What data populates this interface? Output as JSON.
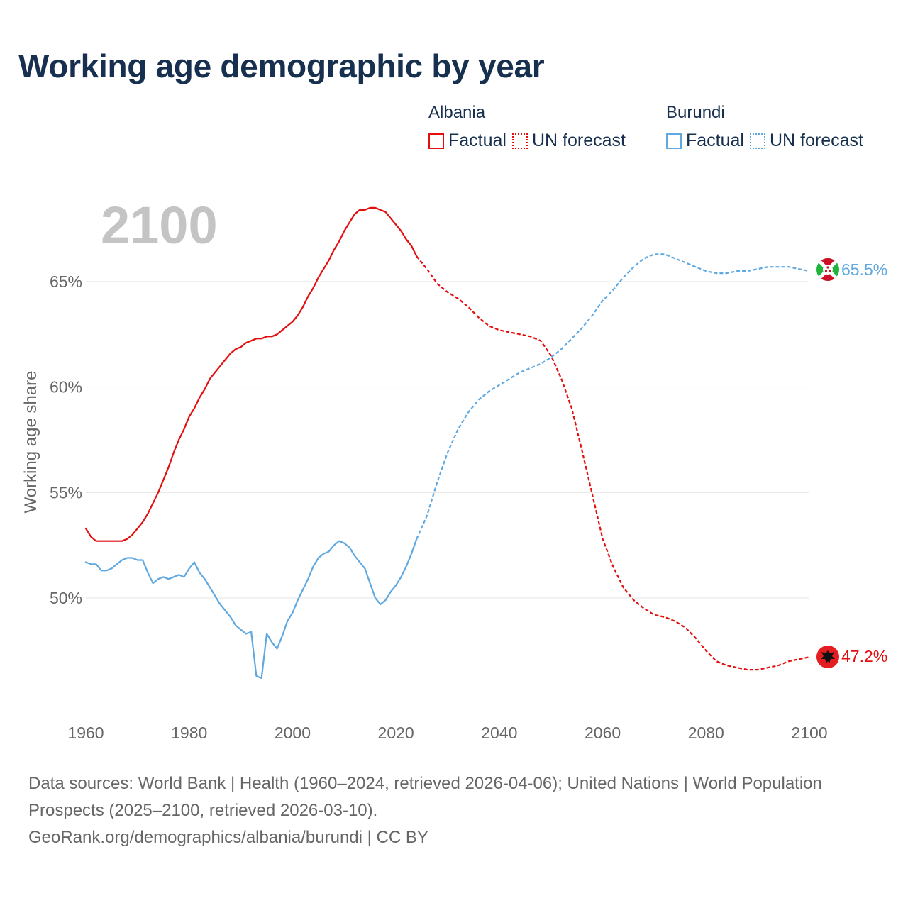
{
  "title": "Working age demographic by year",
  "legend": {
    "groups": [
      {
        "name": "Albania",
        "factual_label": "Factual",
        "forecast_label": "UN forecast",
        "color": "#e30e0e"
      },
      {
        "name": "Burundi",
        "factual_label": "Factual",
        "forecast_label": "UN forecast",
        "color": "#5fa8e0"
      }
    ]
  },
  "year_label": "2100",
  "end_labels": {
    "albania": "47.2%",
    "burundi": "65.5%"
  },
  "flag_icons": {
    "albania": "albania-flag-icon",
    "burundi": "burundi-flag-icon"
  },
  "footer": {
    "sources": "Data sources: World Bank | Health (1960–2024, retrieved 2026-04-06); United Nations | World Population Prospects (2025–2100, retrieved 2026-03-10).",
    "attribution": "GeoRank.org/demographics/albania/burundi | CC BY"
  },
  "chart_data": {
    "type": "line",
    "title": "Working age demographic by year",
    "xlabel": "",
    "ylabel": "Working age share",
    "xlim": [
      1960,
      2100
    ],
    "ylim": [
      45,
      70
    ],
    "x_ticks": [
      1960,
      1980,
      2000,
      2020,
      2040,
      2060,
      2080,
      2100
    ],
    "x_tick_labels": [
      "1960",
      "1980",
      "2000",
      "2020",
      "2040",
      "2060",
      "2080",
      "2100"
    ],
    "y_ticks": [
      50,
      55,
      60,
      65
    ],
    "y_tick_labels": [
      "50%",
      "55%",
      "60%",
      "65%"
    ],
    "grid": true,
    "series": [
      {
        "name": "Albania",
        "color": "#e30e0e",
        "factual": {
          "years": [
            1960,
            1961,
            1962,
            1963,
            1964,
            1965,
            1966,
            1967,
            1968,
            1969,
            1970,
            1971,
            1972,
            1973,
            1974,
            1975,
            1976,
            1977,
            1978,
            1979,
            1980,
            1981,
            1982,
            1983,
            1984,
            1985,
            1986,
            1987,
            1988,
            1989,
            1990,
            1991,
            1992,
            1993,
            1994,
            1995,
            1996,
            1997,
            1998,
            1999,
            2000,
            2001,
            2002,
            2003,
            2004,
            2005,
            2006,
            2007,
            2008,
            2009,
            2010,
            2011,
            2012,
            2013,
            2014,
            2015,
            2016,
            2017,
            2018,
            2019,
            2020,
            2021,
            2022,
            2023,
            2024
          ],
          "values": [
            53.3,
            52.9,
            52.7,
            52.7,
            52.7,
            52.7,
            52.7,
            52.7,
            52.8,
            53.0,
            53.3,
            53.6,
            54.0,
            54.5,
            55.0,
            55.6,
            56.2,
            56.9,
            57.5,
            58.0,
            58.6,
            59.0,
            59.5,
            59.9,
            60.4,
            60.7,
            61.0,
            61.3,
            61.6,
            61.8,
            61.9,
            62.1,
            62.2,
            62.3,
            62.3,
            62.4,
            62.4,
            62.5,
            62.7,
            62.9,
            63.1,
            63.4,
            63.8,
            64.3,
            64.7,
            65.2,
            65.6,
            66.0,
            66.5,
            66.9,
            67.4,
            67.8,
            68.2,
            68.4,
            68.4,
            68.5,
            68.5,
            68.4,
            68.3,
            68.0,
            67.7,
            67.4,
            67.0,
            66.7,
            66.2
          ],
          "label": "Factual"
        },
        "forecast": {
          "years": [
            2024,
            2026,
            2028,
            2030,
            2032,
            2034,
            2036,
            2038,
            2040,
            2042,
            2044,
            2046,
            2048,
            2050,
            2052,
            2054,
            2056,
            2058,
            2060,
            2062,
            2064,
            2066,
            2068,
            2070,
            2072,
            2074,
            2076,
            2078,
            2080,
            2082,
            2084,
            2086,
            2088,
            2090,
            2092,
            2094,
            2096,
            2098,
            2100
          ],
          "values": [
            66.2,
            65.6,
            64.9,
            64.5,
            64.2,
            63.8,
            63.3,
            62.9,
            62.7,
            62.6,
            62.5,
            62.4,
            62.2,
            61.5,
            60.4,
            59.0,
            57.0,
            54.9,
            52.8,
            51.5,
            50.5,
            49.9,
            49.5,
            49.2,
            49.1,
            48.9,
            48.6,
            48.1,
            47.5,
            47.0,
            46.8,
            46.7,
            46.6,
            46.6,
            46.7,
            46.8,
            47.0,
            47.1,
            47.2
          ],
          "label": "UN forecast"
        }
      },
      {
        "name": "Burundi",
        "color": "#5fa8e0",
        "factual": {
          "years": [
            1960,
            1961,
            1962,
            1963,
            1964,
            1965,
            1966,
            1967,
            1968,
            1969,
            1970,
            1971,
            1972,
            1973,
            1974,
            1975,
            1976,
            1977,
            1978,
            1979,
            1980,
            1981,
            1982,
            1983,
            1984,
            1985,
            1986,
            1987,
            1988,
            1989,
            1990,
            1991,
            1992,
            1993,
            1994,
            1995,
            1996,
            1997,
            1998,
            1999,
            2000,
            2001,
            2002,
            2003,
            2004,
            2005,
            2006,
            2007,
            2008,
            2009,
            2010,
            2011,
            2012,
            2013,
            2014,
            2015,
            2016,
            2017,
            2018,
            2019,
            2020,
            2021,
            2022,
            2023,
            2024
          ],
          "values": [
            51.7,
            51.6,
            51.6,
            51.3,
            51.3,
            51.4,
            51.6,
            51.8,
            51.9,
            51.9,
            51.8,
            51.8,
            51.2,
            50.7,
            50.9,
            51.0,
            50.9,
            51.0,
            51.1,
            51.0,
            51.4,
            51.7,
            51.2,
            50.9,
            50.5,
            50.1,
            49.7,
            49.4,
            49.1,
            48.7,
            48.5,
            48.3,
            48.4,
            46.3,
            46.2,
            48.3,
            47.9,
            47.6,
            48.2,
            48.9,
            49.3,
            49.9,
            50.4,
            50.9,
            51.5,
            51.9,
            52.1,
            52.2,
            52.5,
            52.7,
            52.6,
            52.4,
            52.0,
            51.7,
            51.4,
            50.7,
            50.0,
            49.7,
            49.9,
            50.3,
            50.6,
            51.0,
            51.5,
            52.1,
            52.8
          ],
          "label": "Factual"
        },
        "forecast": {
          "years": [
            2024,
            2026,
            2028,
            2030,
            2032,
            2034,
            2036,
            2038,
            2040,
            2042,
            2044,
            2046,
            2048,
            2050,
            2052,
            2054,
            2056,
            2058,
            2060,
            2062,
            2064,
            2066,
            2068,
            2070,
            2072,
            2074,
            2076,
            2078,
            2080,
            2082,
            2084,
            2086,
            2088,
            2090,
            2092,
            2094,
            2096,
            2098,
            2100
          ],
          "values": [
            52.8,
            53.9,
            55.5,
            56.9,
            58.0,
            58.8,
            59.4,
            59.8,
            60.1,
            60.4,
            60.7,
            60.9,
            61.1,
            61.4,
            61.8,
            62.3,
            62.8,
            63.4,
            64.1,
            64.6,
            65.2,
            65.7,
            66.1,
            66.3,
            66.3,
            66.1,
            65.9,
            65.7,
            65.5,
            65.4,
            65.4,
            65.5,
            65.5,
            65.6,
            65.7,
            65.7,
            65.7,
            65.6,
            65.5
          ],
          "label": "UN forecast"
        }
      }
    ]
  }
}
